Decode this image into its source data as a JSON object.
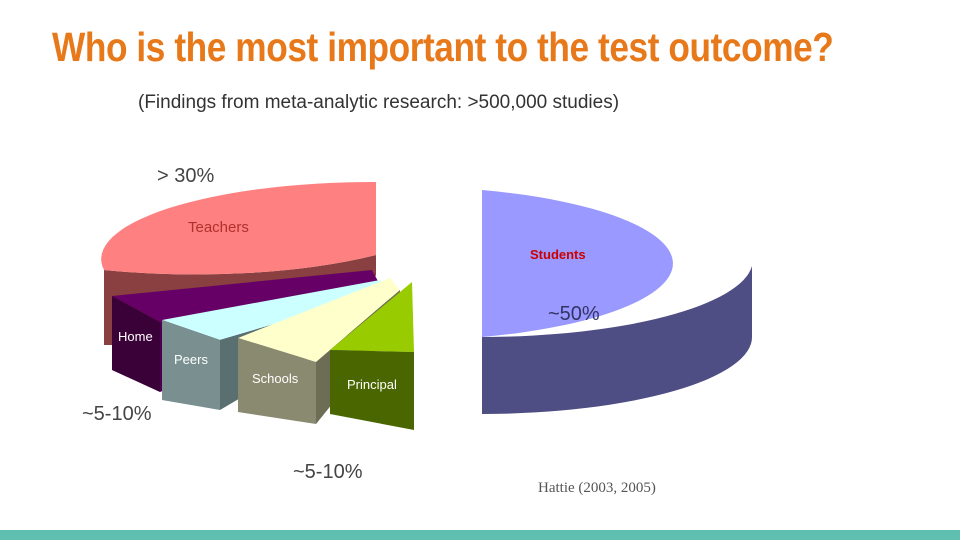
{
  "slide": {
    "title": "Who is the most important to the test outcome?",
    "subtitle": "(Findings from meta-analytic research: >500,000 studies)",
    "citation": "Hattie (2003, 2005)",
    "title_color": "#e8791b",
    "footer_color": "#5fbfb0"
  },
  "chart_data": {
    "type": "pie",
    "style": "3d-exploded",
    "title": "",
    "slices": [
      {
        "name": "Teachers",
        "label": "Teachers",
        "value": 30,
        "top_color": "#ff8080",
        "side_color": "#8a4040",
        "label_color": "#b03030"
      },
      {
        "name": "Home",
        "label": "Home",
        "value": 5,
        "top_color": "#660066",
        "side_color": "#3a0038",
        "label_color": "#ffffff"
      },
      {
        "name": "Peers",
        "label": "Peers",
        "value": 5,
        "top_color": "#ccffff",
        "side_color": "#7a9090",
        "label_color": "#ffffff"
      },
      {
        "name": "Schools",
        "label": "Schools",
        "value": 5,
        "top_color": "#ffffcc",
        "side_color": "#8a8a70",
        "label_color": "#ffffff"
      },
      {
        "name": "Principal",
        "label": "Principal",
        "value": 5,
        "top_color": "#99cc00",
        "side_color": "#4a6600",
        "label_color": "#ffffff"
      },
      {
        "name": "Students",
        "label": "Students",
        "value": 50,
        "top_color": "#9999ff",
        "side_color": "#4e4e85",
        "label_color": "#cc0000"
      }
    ],
    "annotations": [
      "> 30%",
      "~5-10%",
      "~5-10%",
      "~50%"
    ]
  }
}
